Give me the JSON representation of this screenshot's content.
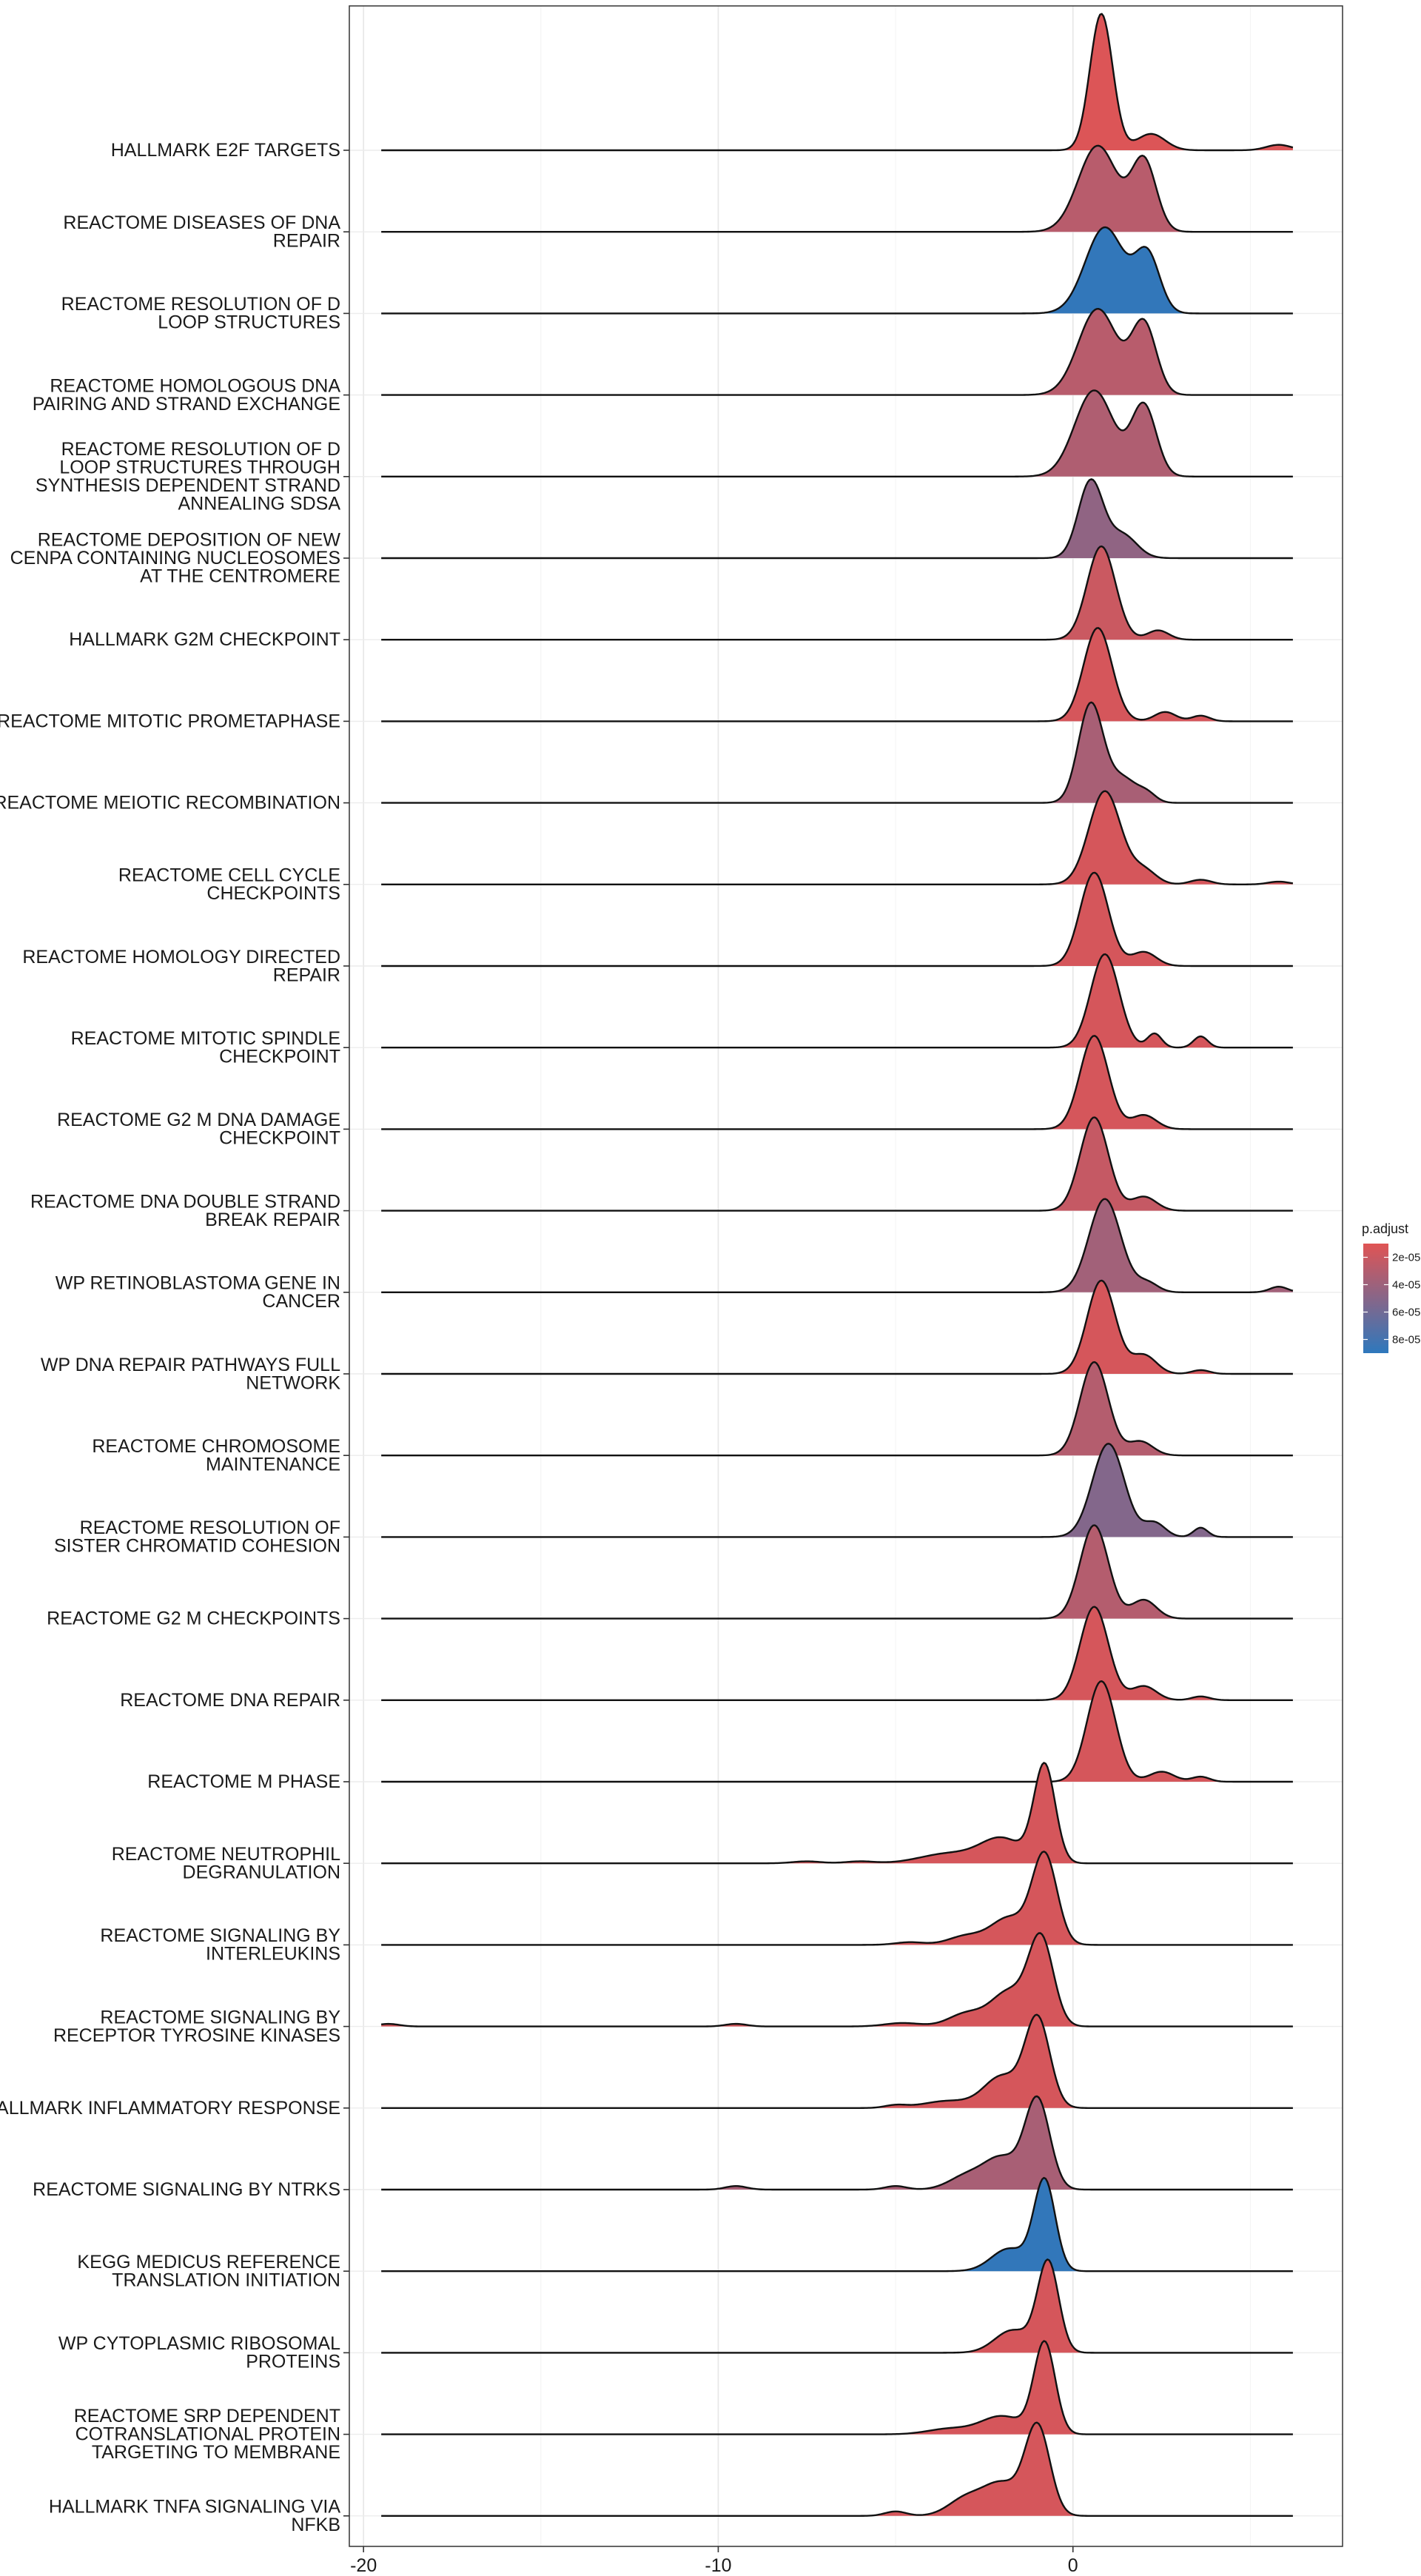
{
  "chart_data": {
    "type": "ridgeline",
    "title": "",
    "xlabel": "",
    "ylabel": "",
    "xlim": [
      -20.4,
      7.6
    ],
    "x_ticks": [
      -20,
      -10,
      0
    ],
    "x_tick_labels": [
      "-20",
      "-10",
      "0"
    ],
    "grid": true,
    "legend": {
      "title": "p.adjust",
      "placement": "right",
      "domain": [
        1e-05,
        9e-05
      ],
      "colors": [
        "#e05454",
        "#2e78bd"
      ],
      "ticks": [
        2e-05,
        4e-05,
        6e-05,
        8e-05
      ],
      "tick_labels": [
        "2e-05",
        "4e-05",
        "6e-05",
        "8e-05"
      ]
    },
    "series": [
      {
        "name": "HALLMARK E2F TARGETS",
        "p_adjust": 1.2e-05,
        "support": [
          -19.5,
          6.2
        ],
        "height": 1.9,
        "peaks": [
          [
            0.8,
            1.0,
            0.32
          ],
          [
            2.2,
            0.12,
            0.4
          ],
          [
            5.8,
            0.04,
            0.35
          ]
        ]
      },
      {
        "name": "REACTOME DISEASES OF DNA REPAIR",
        "p_adjust": 2.8e-05,
        "support": [
          -19.5,
          6.2
        ],
        "height": 1.2,
        "peaks": [
          [
            0.7,
            0.55,
            0.55
          ],
          [
            2.0,
            0.45,
            0.35
          ]
        ]
      },
      {
        "name": "REACTOME RESOLUTION OF D LOOP STRUCTURES",
        "p_adjust": 8.8e-05,
        "support": [
          -19.5,
          6.2
        ],
        "height": 1.2,
        "peaks": [
          [
            0.9,
            0.6,
            0.55
          ],
          [
            2.1,
            0.4,
            0.35
          ]
        ]
      },
      {
        "name": "REACTOME HOMOLOGOUS DNA PAIRING AND STRAND EXCHANGE",
        "p_adjust": 2.8e-05,
        "support": [
          -19.5,
          6.2
        ],
        "height": 1.2,
        "peaks": [
          [
            0.7,
            0.55,
            0.55
          ],
          [
            2.0,
            0.45,
            0.35
          ]
        ]
      },
      {
        "name": "REACTOME RESOLUTION OF D LOOP STRUCTURES THROUGH SYNTHESIS DEPENDENT STRAND ANNEALING SDSA",
        "p_adjust": 3.2e-05,
        "support": [
          -19.5,
          6.2
        ],
        "height": 1.2,
        "peaks": [
          [
            0.6,
            0.55,
            0.55
          ],
          [
            2.0,
            0.45,
            0.35
          ]
        ]
      },
      {
        "name": "REACTOME DEPOSITION OF NEW CENPA CONTAINING NUCLEOSOMES AT THE CENTROMERE",
        "p_adjust": 4.6e-05,
        "support": [
          -19.5,
          6.2
        ],
        "height": 1.1,
        "peaks": [
          [
            0.5,
            1.0,
            0.35
          ],
          [
            1.4,
            0.3,
            0.4
          ]
        ]
      },
      {
        "name": "HALLMARK G2M CHECKPOINT",
        "p_adjust": 2e-05,
        "support": [
          -19.5,
          6.2
        ],
        "height": 1.3,
        "peaks": [
          [
            0.8,
            1.0,
            0.4
          ],
          [
            2.4,
            0.1,
            0.3
          ]
        ]
      },
      {
        "name": "REACTOME MITOTIC PROMETAPHASE",
        "p_adjust": 1.5e-05,
        "support": [
          -19.5,
          6.2
        ],
        "height": 1.3,
        "peaks": [
          [
            0.7,
            1.0,
            0.4
          ],
          [
            2.6,
            0.1,
            0.3
          ],
          [
            3.6,
            0.06,
            0.25
          ]
        ]
      },
      {
        "name": "REACTOME MEIOTIC RECOMBINATION",
        "p_adjust": 3.5e-05,
        "support": [
          -19.5,
          6.2
        ],
        "height": 1.4,
        "peaks": [
          [
            0.5,
            1.0,
            0.35
          ],
          [
            1.4,
            0.25,
            0.4
          ],
          [
            2.1,
            0.08,
            0.25
          ]
        ]
      },
      {
        "name": "REACTOME CELL CYCLE CHECKPOINTS",
        "p_adjust": 1.5e-05,
        "support": [
          -19.5,
          6.2
        ],
        "height": 1.3,
        "peaks": [
          [
            0.9,
            1.0,
            0.45
          ],
          [
            2.0,
            0.15,
            0.35
          ],
          [
            3.6,
            0.05,
            0.3
          ],
          [
            5.8,
            0.03,
            0.3
          ]
        ]
      },
      {
        "name": "REACTOME HOMOLOGY DIRECTED REPAIR",
        "p_adjust": 1.5e-05,
        "support": [
          -19.5,
          6.2
        ],
        "height": 1.3,
        "peaks": [
          [
            0.6,
            1.0,
            0.4
          ],
          [
            2.0,
            0.15,
            0.35
          ]
        ]
      },
      {
        "name": "REACTOME MITOTIC SPINDLE CHECKPOINT",
        "p_adjust": 1.5e-05,
        "support": [
          -19.5,
          6.2
        ],
        "height": 1.3,
        "peaks": [
          [
            0.9,
            1.0,
            0.4
          ],
          [
            2.3,
            0.15,
            0.2
          ],
          [
            3.6,
            0.12,
            0.2
          ]
        ]
      },
      {
        "name": "REACTOME G2 M DNA DAMAGE CHECKPOINT",
        "p_adjust": 1.5e-05,
        "support": [
          -19.5,
          6.2
        ],
        "height": 1.3,
        "peaks": [
          [
            0.6,
            1.0,
            0.4
          ],
          [
            2.0,
            0.15,
            0.35
          ]
        ]
      },
      {
        "name": "REACTOME DNA DOUBLE STRAND BREAK REPAIR",
        "p_adjust": 2.2e-05,
        "support": [
          -19.5,
          6.2
        ],
        "height": 1.3,
        "peaks": [
          [
            0.6,
            1.0,
            0.4
          ],
          [
            2.0,
            0.15,
            0.35
          ]
        ]
      },
      {
        "name": "WP RETINOBLASTOMA GENE IN CANCER",
        "p_adjust": 3.8e-05,
        "support": [
          -19.5,
          6.2
        ],
        "height": 1.3,
        "peaks": [
          [
            0.9,
            1.0,
            0.45
          ],
          [
            2.1,
            0.1,
            0.3
          ],
          [
            5.8,
            0.06,
            0.25
          ]
        ]
      },
      {
        "name": "WP DNA REPAIR PATHWAYS FULL NETWORK",
        "p_adjust": 1.5e-05,
        "support": [
          -19.5,
          6.2
        ],
        "height": 1.3,
        "peaks": [
          [
            0.8,
            1.0,
            0.4
          ],
          [
            2.0,
            0.2,
            0.35
          ],
          [
            3.6,
            0.04,
            0.25
          ]
        ]
      },
      {
        "name": "REACTOME CHROMOSOME MAINTENANCE",
        "p_adjust": 3e-05,
        "support": [
          -19.5,
          6.2
        ],
        "height": 1.3,
        "peaks": [
          [
            0.6,
            1.0,
            0.4
          ],
          [
            1.9,
            0.15,
            0.35
          ]
        ]
      },
      {
        "name": "REACTOME RESOLUTION OF SISTER CHROMATID COHESION",
        "p_adjust": 5.2e-05,
        "support": [
          -19.5,
          6.2
        ],
        "height": 1.3,
        "peaks": [
          [
            1.0,
            1.0,
            0.45
          ],
          [
            2.3,
            0.15,
            0.3
          ],
          [
            3.6,
            0.1,
            0.2
          ]
        ]
      },
      {
        "name": "REACTOME G2 M CHECKPOINTS",
        "p_adjust": 3e-05,
        "support": [
          -19.5,
          6.2
        ],
        "height": 1.3,
        "peaks": [
          [
            0.6,
            1.0,
            0.4
          ],
          [
            2.0,
            0.2,
            0.35
          ]
        ]
      },
      {
        "name": "REACTOME DNA REPAIR",
        "p_adjust": 1.5e-05,
        "support": [
          -19.5,
          6.2
        ],
        "height": 1.3,
        "peaks": [
          [
            0.6,
            1.0,
            0.4
          ],
          [
            2.0,
            0.15,
            0.35
          ],
          [
            3.6,
            0.04,
            0.25
          ]
        ]
      },
      {
        "name": "REACTOME M PHASE",
        "p_adjust": 1.5e-05,
        "support": [
          -19.5,
          6.2
        ],
        "height": 1.4,
        "peaks": [
          [
            0.8,
            1.0,
            0.4
          ],
          [
            2.5,
            0.1,
            0.35
          ],
          [
            3.6,
            0.05,
            0.25
          ]
        ]
      },
      {
        "name": "REACTOME NEUTROPHIL DEGRANULATION",
        "p_adjust": 1.5e-05,
        "support": [
          -19.5,
          6.2
        ],
        "height": 1.4,
        "peaks": [
          [
            -0.8,
            1.0,
            0.3
          ],
          [
            -2.0,
            0.25,
            0.6
          ],
          [
            -3.5,
            0.1,
            0.8
          ],
          [
            -6.0,
            0.02,
            0.4
          ],
          [
            -7.5,
            0.02,
            0.4
          ]
        ]
      },
      {
        "name": "REACTOME SIGNALING BY INTERLEUKINS",
        "p_adjust": 1.5e-05,
        "support": [
          -19.5,
          6.2
        ],
        "height": 1.3,
        "peaks": [
          [
            -0.8,
            1.0,
            0.35
          ],
          [
            -1.8,
            0.3,
            0.5
          ],
          [
            -3.0,
            0.1,
            0.5
          ],
          [
            -4.6,
            0.03,
            0.4
          ]
        ]
      },
      {
        "name": "REACTOME SIGNALING BY RECEPTOR TYROSINE KINASES",
        "p_adjust": 1.5e-05,
        "support": [
          -19.5,
          6.2
        ],
        "height": 1.3,
        "peaks": [
          [
            -0.9,
            1.0,
            0.35
          ],
          [
            -1.8,
            0.4,
            0.5
          ],
          [
            -3.0,
            0.15,
            0.5
          ],
          [
            -4.8,
            0.04,
            0.5
          ],
          [
            -9.5,
            0.03,
            0.3
          ],
          [
            -19.3,
            0.03,
            0.3
          ]
        ]
      },
      {
        "name": "HALLMARK INFLAMMATORY RESPONSE",
        "p_adjust": 1.5e-05,
        "support": [
          -19.5,
          6.2
        ],
        "height": 1.3,
        "peaks": [
          [
            -1.0,
            1.0,
            0.35
          ],
          [
            -2.0,
            0.35,
            0.5
          ],
          [
            -3.5,
            0.08,
            0.7
          ],
          [
            -5.0,
            0.03,
            0.3
          ]
        ]
      },
      {
        "name": "REACTOME SIGNALING BY NTRKS",
        "p_adjust": 3.5e-05,
        "support": [
          -19.5,
          6.2
        ],
        "height": 1.3,
        "peaks": [
          [
            -1.0,
            1.0,
            0.35
          ],
          [
            -2.0,
            0.35,
            0.5
          ],
          [
            -3.0,
            0.15,
            0.5
          ],
          [
            -5.0,
            0.04,
            0.3
          ],
          [
            -9.5,
            0.04,
            0.3
          ]
        ]
      },
      {
        "name": "KEGG MEDICUS REFERENCE TRANSLATION INITIATION",
        "p_adjust": 8.8e-05,
        "support": [
          -19.5,
          6.2
        ],
        "height": 1.3,
        "peaks": [
          [
            -0.8,
            1.0,
            0.3
          ],
          [
            -1.8,
            0.25,
            0.5
          ]
        ]
      },
      {
        "name": "WP CYTOPLASMIC RIBOSOMAL PROTEINS",
        "p_adjust": 1.5e-05,
        "support": [
          -19.5,
          6.2
        ],
        "height": 1.3,
        "peaks": [
          [
            -0.7,
            1.0,
            0.3
          ],
          [
            -1.7,
            0.25,
            0.5
          ]
        ]
      },
      {
        "name": "REACTOME SRP DEPENDENT COTRANSLATIONAL PROTEIN TARGETING TO MEMBRANE",
        "p_adjust": 1.5e-05,
        "support": [
          -19.5,
          6.2
        ],
        "height": 1.3,
        "peaks": [
          [
            -0.8,
            1.0,
            0.3
          ],
          [
            -2.0,
            0.2,
            0.6
          ],
          [
            -3.5,
            0.06,
            0.6
          ]
        ]
      },
      {
        "name": "HALLMARK TNFA SIGNALING VIA NFKB",
        "p_adjust": 1.5e-05,
        "support": [
          -19.5,
          6.2
        ],
        "height": 1.3,
        "peaks": [
          [
            -1.0,
            1.0,
            0.35
          ],
          [
            -2.0,
            0.35,
            0.5
          ],
          [
            -3.0,
            0.2,
            0.5
          ],
          [
            -5.0,
            0.05,
            0.3
          ]
        ]
      }
    ],
    "y_tick_labels": [
      [
        "HALLMARK E2F TARGETS"
      ],
      [
        "REACTOME DISEASES OF DNA",
        "REPAIR"
      ],
      [
        "REACTOME RESOLUTION OF D",
        "LOOP STRUCTURES"
      ],
      [
        "REACTOME HOMOLOGOUS DNA",
        "PAIRING AND STRAND EXCHANGE"
      ],
      [
        "REACTOME RESOLUTION OF D",
        "LOOP STRUCTURES THROUGH",
        "SYNTHESIS DEPENDENT STRAND",
        "ANNEALING SDSA"
      ],
      [
        "REACTOME DEPOSITION OF NEW",
        "CENPA CONTAINING NUCLEOSOMES",
        "AT THE CENTROMERE"
      ],
      [
        "HALLMARK G2M CHECKPOINT"
      ],
      [
        "REACTOME MITOTIC PROMETAPHASE"
      ],
      [
        "REACTOME MEIOTIC RECOMBINATION"
      ],
      [
        "REACTOME CELL CYCLE",
        "CHECKPOINTS"
      ],
      [
        "REACTOME HOMOLOGY DIRECTED",
        "REPAIR"
      ],
      [
        "REACTOME MITOTIC SPINDLE",
        "CHECKPOINT"
      ],
      [
        "REACTOME G2 M DNA DAMAGE",
        "CHECKPOINT"
      ],
      [
        "REACTOME DNA DOUBLE STRAND",
        "BREAK REPAIR"
      ],
      [
        "WP RETINOBLASTOMA GENE IN",
        "CANCER"
      ],
      [
        "WP DNA REPAIR PATHWAYS FULL",
        "NETWORK"
      ],
      [
        "REACTOME CHROMOSOME",
        "MAINTENANCE"
      ],
      [
        "REACTOME RESOLUTION OF",
        "SISTER CHROMATID COHESION"
      ],
      [
        "REACTOME G2 M CHECKPOINTS"
      ],
      [
        "REACTOME DNA REPAIR"
      ],
      [
        "REACTOME M PHASE"
      ],
      [
        "REACTOME NEUTROPHIL",
        "DEGRANULATION"
      ],
      [
        "REACTOME SIGNALING BY",
        "INTERLEUKINS"
      ],
      [
        "REACTOME SIGNALING BY",
        "RECEPTOR TYROSINE KINASES"
      ],
      [
        "HALLMARK INFLAMMATORY RESPONSE"
      ],
      [
        "REACTOME SIGNALING BY NTRKS"
      ],
      [
        "KEGG MEDICUS REFERENCE",
        "TRANSLATION INITIATION"
      ],
      [
        "WP CYTOPLASMIC RIBOSOMAL",
        "PROTEINS"
      ],
      [
        "REACTOME SRP DEPENDENT",
        "COTRANSLATIONAL PROTEIN",
        "TARGETING TO MEMBRANE"
      ],
      [
        "HALLMARK TNFA SIGNALING VIA",
        "NFKB"
      ]
    ]
  }
}
